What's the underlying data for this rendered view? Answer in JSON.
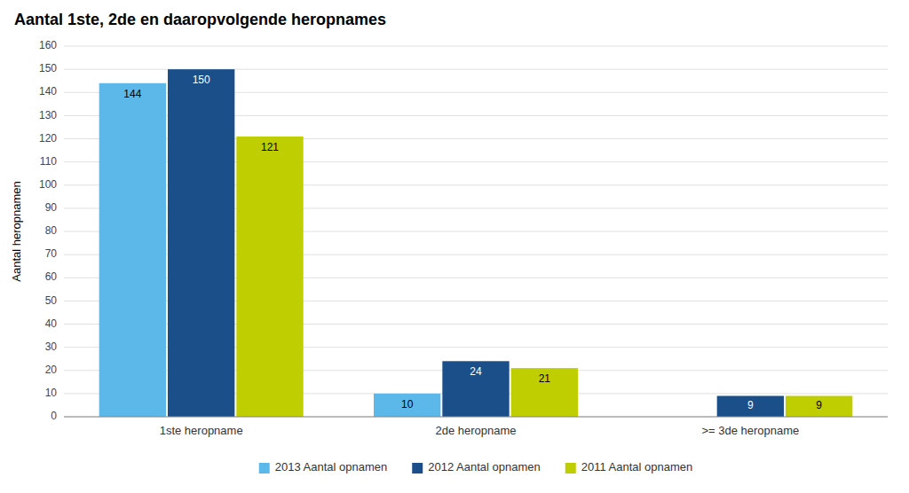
{
  "chart_data": {
    "type": "bar",
    "title": "Aantal 1ste, 2de en daaropvolgende heropnames",
    "y_label": "Aantal heropnamen",
    "categories": [
      "1ste heropname",
      "2de heropname",
      ">= 3de heropname"
    ],
    "series": [
      {
        "name": "2013  Aantal opnamen",
        "color": "#5BB8E8",
        "values": [
          144,
          10,
          0
        ]
      },
      {
        "name": "2012  Aantal opnamen",
        "color": "#1A4F8A",
        "values": [
          150,
          24,
          9
        ]
      },
      {
        "name": "2011  Aantal opnamen",
        "color": "#BFCE00",
        "values": [
          121,
          21,
          9
        ]
      }
    ],
    "ylim": [
      0,
      160
    ],
    "yticks": [
      0,
      10,
      20,
      30,
      40,
      50,
      60,
      70,
      80,
      90,
      100,
      110,
      120,
      130,
      140,
      150,
      160
    ],
    "grid": true,
    "legend": "bottom",
    "data_labels": true
  }
}
